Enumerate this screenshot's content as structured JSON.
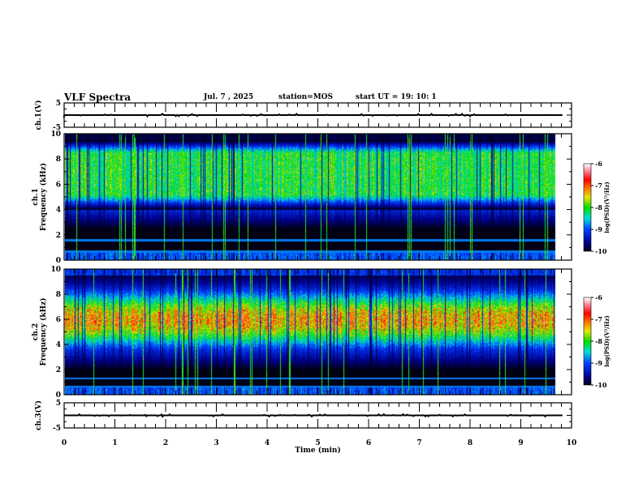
{
  "header": {
    "title": "VLF Spectra",
    "date": "Jul. 7 , 2025",
    "station": "station=MOS",
    "start_ut": "start UT =   19: 10: 1"
  },
  "chart_data": [
    {
      "type": "line",
      "name": "ch1-waveform",
      "ylabel": "ch.1(V)",
      "ylim": [
        -5,
        5
      ],
      "yticks": [
        "5",
        "-5"
      ],
      "baseline": 0,
      "xlim": [
        0,
        10
      ],
      "data_end_min": 9.83
    },
    {
      "type": "heatmap",
      "name": "ch1-spectrogram",
      "ylabel": "ch.1\nFrequency (kHz)",
      "ylabel_lines": [
        "ch.1",
        "Frequency (kHz)"
      ],
      "ylim": [
        0,
        10
      ],
      "yticks": [
        "0",
        "2",
        "4",
        "6",
        "8",
        "10"
      ],
      "xlim": [
        0,
        10
      ],
      "data_end_min": 9.83,
      "colorbar": {
        "label": "log(PSD)(V²/Hz)",
        "ticks": [
          "-6",
          "-7",
          "-8",
          "-9",
          "-10"
        ],
        "range": [
          -10,
          -6
        ]
      },
      "features": {
        "noise_band_khz": [
          4,
          9.5
        ],
        "peak_level": -7.7,
        "lines_khz": [
          0.7,
          1.6
        ]
      }
    },
    {
      "type": "heatmap",
      "name": "ch2-spectrogram",
      "ylabel_lines": [
        "ch.2",
        "Frequency (kHz)"
      ],
      "ylim": [
        0,
        10
      ],
      "yticks": [
        "0",
        "2",
        "4",
        "6",
        "8",
        "10"
      ],
      "xlim": [
        0,
        10
      ],
      "data_end_min": 9.83,
      "colorbar": {
        "label": "log(PSD)(V²/Hz)",
        "ticks": [
          "-6",
          "-7",
          "-8",
          "-9",
          "-10"
        ],
        "range": [
          -10,
          -6
        ]
      },
      "features": {
        "noise_band_khz": [
          3.5,
          9.5
        ],
        "peak_khz": 6,
        "peak_level": -6.9,
        "lines_khz": [
          0.7,
          1.3
        ]
      }
    },
    {
      "type": "line",
      "name": "ch3-waveform",
      "ylabel": "ch.3(V)",
      "ylim": [
        -5,
        5
      ],
      "yticks": [
        "5",
        "-5"
      ],
      "baseline": 0,
      "xlim": [
        0,
        10
      ],
      "data_end_min": 9.83
    }
  ],
  "xaxis": {
    "label": "Time (min)",
    "ticks": [
      "0",
      "1",
      "2",
      "3",
      "4",
      "5",
      "6",
      "7",
      "8",
      "9",
      "10"
    ]
  },
  "colors": {
    "axis": "#000000",
    "background": "#ffffff"
  }
}
